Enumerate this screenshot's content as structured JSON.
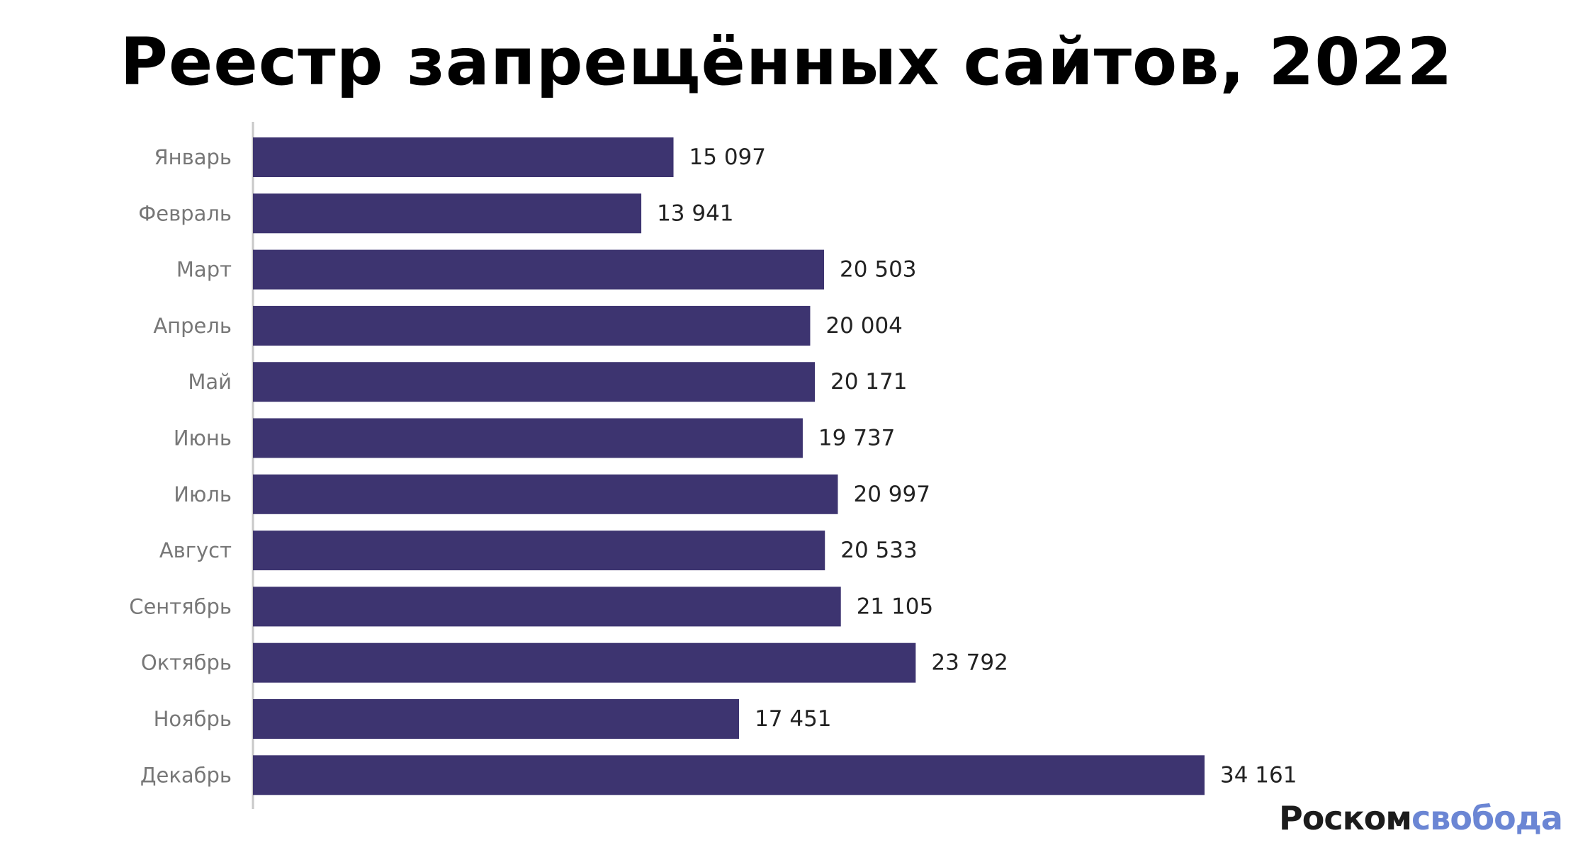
{
  "chart_data": {
    "type": "bar",
    "orientation": "horizontal",
    "title": "Реестр запрещённых сайтов, 2022",
    "categories": [
      "Январь",
      "Февраль",
      "Март",
      "Апрель",
      "Май",
      "Июнь",
      "Июль",
      "Август",
      "Сентябрь",
      "Октябрь",
      "Ноябрь",
      "Декабрь"
    ],
    "values": [
      15097,
      13941,
      20503,
      20004,
      20171,
      19737,
      20997,
      20533,
      21105,
      23792,
      17451,
      34161
    ],
    "value_labels": [
      "15 097",
      "13 941",
      "20 503",
      "20 004",
      "20 171",
      "19 737",
      "20 997",
      "20 533",
      "21 105",
      "23 792",
      "17 451",
      "34 161"
    ],
    "xlabel": "",
    "ylabel": "",
    "xlim": [
      0,
      34161
    ],
    "grid": false,
    "legend": "none",
    "colors": {
      "bar": "#3d3470",
      "axis": "#c8c8c8",
      "category_label": "#777777",
      "value_label": "#222222"
    }
  },
  "branding": {
    "logo_part1": "Роском",
    "logo_part2": "свобода"
  }
}
